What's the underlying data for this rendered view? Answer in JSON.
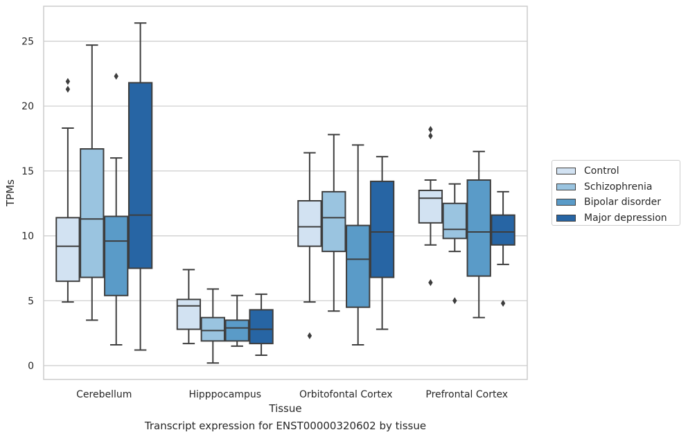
{
  "chart_data": {
    "type": "box",
    "xlabel": "Tissue",
    "ylabel": "TPMs",
    "caption": "Transcript expression for ENST00000320602 by tissue",
    "ylim": [
      -1,
      28
    ],
    "yticks": [
      0,
      5,
      10,
      15,
      20,
      25
    ],
    "grid": "horizontal",
    "legend_position": "right",
    "categories": [
      "Cerebellum",
      "Hipppocampus",
      "Orbitofontal Cortex",
      "Prefrontal Cortex"
    ],
    "series": [
      {
        "name": "Control",
        "color": "#d2e2f2",
        "boxes": [
          {
            "whislo": 4.9,
            "q1": 6.5,
            "med": 9.2,
            "q3": 11.4,
            "whishi": 18.3,
            "fliers": [
              21.3,
              21.9
            ]
          },
          {
            "whislo": 1.7,
            "q1": 2.8,
            "med": 4.6,
            "q3": 5.1,
            "whishi": 7.4,
            "fliers": []
          },
          {
            "whislo": 4.9,
            "q1": 9.2,
            "med": 10.7,
            "q3": 12.7,
            "whishi": 16.4,
            "fliers": [
              2.3
            ]
          },
          {
            "whislo": 9.3,
            "q1": 11.0,
            "med": 12.9,
            "q3": 13.5,
            "whishi": 14.3,
            "fliers": [
              6.4,
              17.7,
              18.2
            ]
          }
        ]
      },
      {
        "name": "Schizophrenia",
        "color": "#9ac4e0",
        "boxes": [
          {
            "whislo": 3.5,
            "q1": 6.8,
            "med": 11.3,
            "q3": 16.7,
            "whishi": 24.7,
            "fliers": []
          },
          {
            "whislo": 0.2,
            "q1": 1.9,
            "med": 2.7,
            "q3": 3.7,
            "whishi": 5.9,
            "fliers": []
          },
          {
            "whislo": 4.2,
            "q1": 8.8,
            "med": 11.4,
            "q3": 13.4,
            "whishi": 17.8,
            "fliers": []
          },
          {
            "whislo": 8.8,
            "q1": 9.8,
            "med": 10.5,
            "q3": 12.5,
            "whishi": 14.0,
            "fliers": [
              5.0
            ]
          }
        ]
      },
      {
        "name": "Bipolar disorder",
        "color": "#5a9bc8",
        "boxes": [
          {
            "whislo": 1.6,
            "q1": 5.4,
            "med": 9.6,
            "q3": 11.5,
            "whishi": 16.0,
            "fliers": [
              22.3
            ]
          },
          {
            "whislo": 1.5,
            "q1": 1.9,
            "med": 2.9,
            "q3": 3.5,
            "whishi": 5.4,
            "fliers": []
          },
          {
            "whislo": 1.6,
            "q1": 4.5,
            "med": 8.2,
            "q3": 10.8,
            "whishi": 17.0,
            "fliers": []
          },
          {
            "whislo": 3.7,
            "q1": 6.9,
            "med": 10.3,
            "q3": 14.3,
            "whishi": 16.5,
            "fliers": []
          }
        ]
      },
      {
        "name": "Major depression",
        "color": "#2765a4",
        "boxes": [
          {
            "whislo": 1.2,
            "q1": 7.5,
            "med": 11.6,
            "q3": 21.8,
            "whishi": 26.4,
            "fliers": []
          },
          {
            "whislo": 0.8,
            "q1": 1.7,
            "med": 2.8,
            "q3": 4.3,
            "whishi": 5.5,
            "fliers": []
          },
          {
            "whislo": 2.8,
            "q1": 6.8,
            "med": 10.3,
            "q3": 14.2,
            "whishi": 16.1,
            "fliers": []
          },
          {
            "whislo": 7.8,
            "q1": 9.3,
            "med": 10.3,
            "q3": 11.6,
            "whishi": 13.4,
            "fliers": [
              4.8
            ]
          }
        ]
      }
    ]
  }
}
